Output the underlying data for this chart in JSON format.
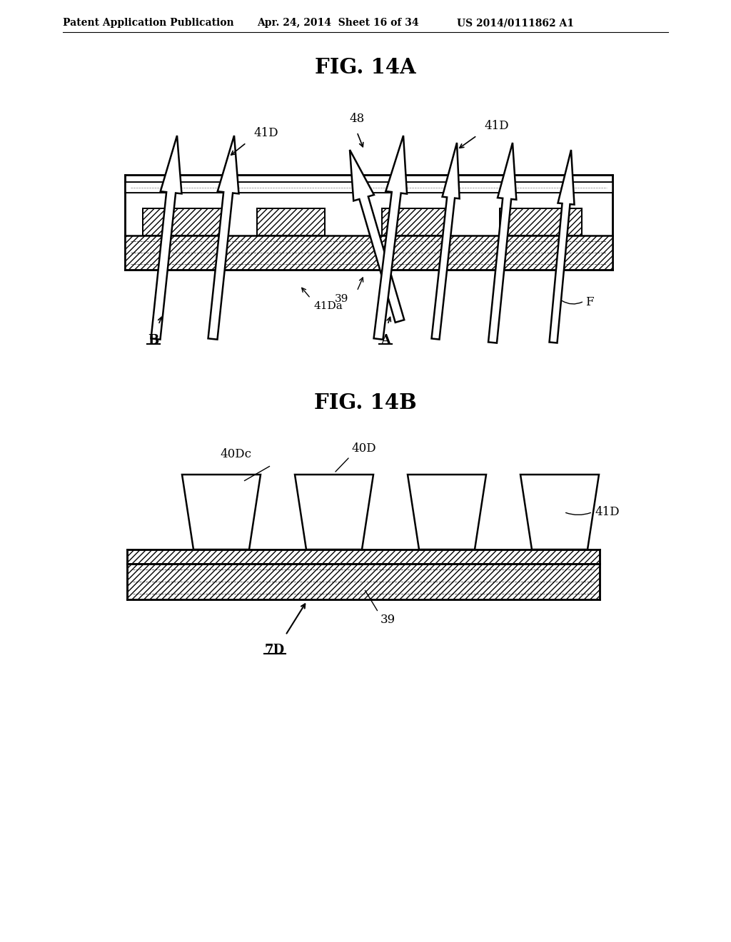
{
  "bg_color": "#ffffff",
  "header_text": "Patent Application Publication",
  "header_date": "Apr. 24, 2014  Sheet 16 of 34",
  "header_patent": "US 2014/0111862 A1",
  "fig_14a_title": "FIG. 14A",
  "fig_14b_title": "FIG. 14B",
  "line_color": "#000000"
}
